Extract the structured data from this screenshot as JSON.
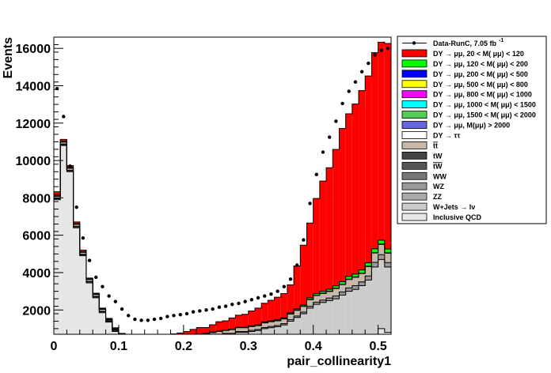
{
  "chart_data": {
    "type": "stacked-histogram",
    "xlabel": "pair_collinearity1",
    "ylabel": "Events",
    "xlim": [
      0,
      0.52
    ],
    "ylim": [
      700,
      16600
    ],
    "bin_width": 0.01,
    "x_ticks": [
      0,
      0.1,
      0.2,
      0.3,
      0.4,
      0.5
    ],
    "x_tick_labels": [
      "0",
      "0.1",
      "0.2",
      "0.3",
      "0.4",
      "0.5"
    ],
    "y_ticks": [
      2000,
      4000,
      6000,
      8000,
      10000,
      12000,
      14000,
      16000
    ],
    "y_tick_labels": [
      "2000",
      "4000",
      "6000",
      "8000",
      "10000",
      "12000",
      "14000",
      "16000"
    ],
    "legend_position": "right",
    "legend": [
      {
        "label": "Data-RunC, 7.05 fb",
        "sup": "-1",
        "type": "marker",
        "color": "#000000"
      },
      {
        "label": "DY → μμ, 20 < M( μμ) < 120",
        "color": "#ff0000"
      },
      {
        "label": "DY → μμ, 120 < M( μμ) < 200",
        "color": "#00ff00"
      },
      {
        "label": "DY → μμ, 200 < M( μμ) < 500",
        "color": "#0000ff"
      },
      {
        "label": "DY → μμ, 500 < M( μμ) < 800",
        "color": "#ffff00"
      },
      {
        "label": "DY → μμ, 800 < M( μμ) < 1000",
        "color": "#ff00ff"
      },
      {
        "label": "DY → μμ, 1000 < M( μμ) < 1500",
        "color": "#00ffff"
      },
      {
        "label": "DY → μμ, 1500 < M( μμ) < 2000",
        "color": "#55cc55"
      },
      {
        "label": "DY → μμ, M(μμ) > 2000",
        "color": "#6666dd"
      },
      {
        "label": "DY → ττ",
        "color": "#ffffff"
      },
      {
        "label": "tt",
        "overline": true,
        "color": "#c8b8a8"
      },
      {
        "label": "tW",
        "color": "#444444"
      },
      {
        "label": "tW",
        "overline": true,
        "color": "#555555"
      },
      {
        "label": "WW",
        "color": "#777777"
      },
      {
        "label": "WZ",
        "color": "#999999"
      },
      {
        "label": "ZZ",
        "color": "#aaaaaa"
      },
      {
        "label": "W+Jets → lν",
        "color": "#cccccc"
      },
      {
        "label": "Inclusive QCD",
        "color": "#e6e6e6"
      }
    ],
    "data_x": [
      0.005,
      0.015,
      0.025,
      0.035,
      0.045,
      0.055,
      0.065,
      0.075,
      0.085,
      0.095,
      0.105,
      0.115,
      0.125,
      0.135,
      0.145,
      0.155,
      0.165,
      0.175,
      0.185,
      0.195,
      0.205,
      0.215,
      0.225,
      0.235,
      0.245,
      0.255,
      0.265,
      0.275,
      0.285,
      0.295,
      0.305,
      0.315,
      0.325,
      0.335,
      0.345,
      0.355,
      0.365,
      0.375,
      0.385,
      0.395,
      0.405,
      0.415,
      0.425,
      0.435,
      0.445,
      0.455,
      0.465,
      0.475,
      0.485,
      0.495,
      0.505,
      0.515
    ],
    "data_y": [
      13850,
      12350,
      9700,
      7500,
      5850,
      4650,
      3750,
      3250,
      2750,
      2450,
      2050,
      1700,
      1500,
      1450,
      1450,
      1500,
      1550,
      1650,
      1700,
      1750,
      1800,
      1900,
      1950,
      2000,
      2050,
      2150,
      2200,
      2300,
      2350,
      2450,
      2550,
      2650,
      2750,
      2850,
      3000,
      3250,
      3650,
      4400,
      5750,
      7700,
      9250,
      10450,
      11250,
      12100,
      13050,
      13700,
      14200,
      14750,
      15200,
      15650,
      15900,
      16000
    ],
    "x_edges_start": 0,
    "stack": {
      "qcd": [
        7900,
        10800,
        9400,
        6400,
        4900,
        3450,
        2650,
        1850,
        1350,
        850,
        550,
        350,
        250,
        200,
        150,
        150,
        150,
        120,
        120,
        120,
        100,
        100,
        100,
        100,
        100,
        100,
        100,
        100,
        100,
        100,
        100,
        100,
        100,
        100,
        100,
        100,
        100,
        100,
        100,
        100,
        100,
        100,
        100,
        100,
        100,
        100,
        100,
        100,
        100,
        700,
        1000,
        800
      ],
      "wjets": [
        50,
        50,
        50,
        50,
        50,
        50,
        50,
        50,
        50,
        50,
        50,
        50,
        50,
        50,
        100,
        100,
        150,
        200,
        250,
        250,
        300,
        350,
        400,
        450,
        500,
        550,
        600,
        600,
        700,
        700,
        750,
        800,
        900,
        950,
        1000,
        1100,
        1300,
        1500,
        1700,
        2000,
        2200,
        2300,
        2400,
        2500,
        2700,
        2900,
        3000,
        3200,
        3500,
        3600,
        3700,
        3500
      ],
      "dibos": [
        30,
        30,
        30,
        30,
        30,
        30,
        30,
        30,
        30,
        30,
        30,
        30,
        30,
        30,
        30,
        30,
        30,
        30,
        30,
        30,
        30,
        40,
        40,
        40,
        40,
        50,
        50,
        50,
        50,
        50,
        60,
        60,
        60,
        70,
        70,
        70,
        80,
        80,
        90,
        100,
        120,
        130,
        140,
        150,
        160,
        180,
        200,
        200,
        220,
        250,
        260,
        240
      ],
      "ttbar": [
        100,
        100,
        100,
        100,
        100,
        100,
        100,
        100,
        50,
        50,
        50,
        50,
        50,
        50,
        50,
        50,
        50,
        100,
        100,
        100,
        100,
        150,
        150,
        150,
        150,
        150,
        150,
        200,
        200,
        200,
        200,
        200,
        250,
        250,
        250,
        250,
        300,
        300,
        300,
        350,
        350,
        350,
        350,
        400,
        400,
        450,
        450,
        450,
        500,
        500,
        550,
        500
      ],
      "dytautau": [
        50,
        50,
        50,
        30,
        30,
        30,
        20,
        20,
        20,
        20,
        20,
        20,
        20,
        20,
        20,
        20,
        20,
        20,
        20,
        20,
        20,
        20,
        20,
        20,
        20,
        20,
        20,
        20,
        20,
        20,
        20,
        20,
        20,
        20,
        20,
        20,
        20,
        20,
        20,
        20,
        20,
        20,
        20,
        20,
        20,
        20,
        20,
        20,
        20,
        20,
        20,
        20
      ],
      "dy120": [
        0,
        0,
        0,
        0,
        0,
        0,
        0,
        0,
        0,
        0,
        0,
        0,
        0,
        0,
        0,
        0,
        0,
        0,
        0,
        0,
        0,
        0,
        0,
        0,
        0,
        0,
        0,
        0,
        0,
        0,
        20,
        20,
        30,
        30,
        40,
        40,
        50,
        60,
        60,
        80,
        80,
        100,
        100,
        120,
        130,
        150,
        150,
        170,
        180,
        200,
        200,
        200
      ],
      "dy20": [
        200,
        100,
        100,
        100,
        100,
        50,
        50,
        50,
        50,
        50,
        50,
        50,
        50,
        50,
        50,
        50,
        50,
        150,
        200,
        250,
        300,
        300,
        350,
        300,
        400,
        500,
        500,
        600,
        650,
        700,
        800,
        900,
        1000,
        1100,
        1200,
        1300,
        1500,
        2300,
        3200,
        4000,
        5100,
        5900,
        6500,
        7300,
        8200,
        8700,
        9100,
        9600,
        10000,
        10500,
        10600,
        11000
      ]
    }
  }
}
